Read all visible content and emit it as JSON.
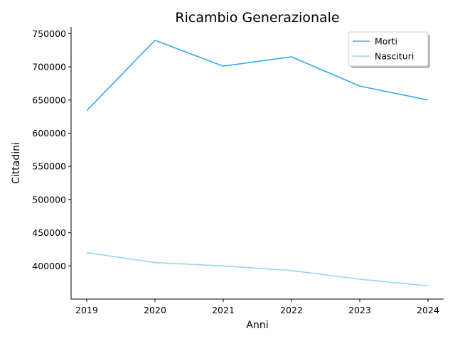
{
  "chart_data": {
    "type": "line",
    "title": "Ricambio Generazionale",
    "xlabel": "Anni",
    "ylabel": "Cittadini",
    "categories": [
      "2019",
      "2020",
      "2021",
      "2022",
      "2023",
      "2024"
    ],
    "ylim": [
      350000,
      760000
    ],
    "y_ticks": [
      "400000",
      "450000",
      "500000",
      "550000",
      "600000",
      "650000",
      "700000",
      "750000"
    ],
    "grid": false,
    "legend_position": "top-right",
    "series": [
      {
        "name": "Morti",
        "color": "#35aaf0",
        "values": [
          634000,
          740000,
          701000,
          715000,
          671000,
          650000
        ]
      },
      {
        "name": "Nascituri",
        "color": "#98d5ee",
        "values": [
          420000,
          405000,
          400000,
          393000,
          380000,
          370000
        ]
      }
    ]
  }
}
